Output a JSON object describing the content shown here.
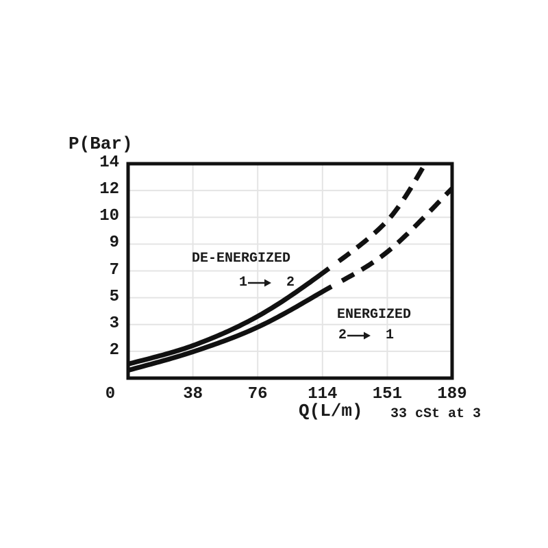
{
  "page": {
    "background": "#ffffff"
  },
  "chart_data": {
    "type": "line",
    "title": "",
    "x_axis": {
      "label": "Q(L/m)",
      "note": "33 cSt at 3",
      "ticks": [
        "0",
        "38",
        "76",
        "114",
        "151",
        "189"
      ],
      "range_lmin": [
        0,
        189
      ],
      "tick_values": [
        0,
        38,
        76,
        114,
        151,
        189
      ]
    },
    "y_axis": {
      "label": "P(Bar)",
      "tick_labels_top_to_bottom": [
        "14",
        "12",
        "10",
        "9",
        "7",
        "5",
        "3",
        "2"
      ],
      "evenly_spaced_ticks": true,
      "bottom_edge_value_bar": 0,
      "top_edge_value_bar": 14,
      "intervals_top_to_bottom": 8
    },
    "grid": true,
    "legend_position": "none",
    "series": [
      {
        "name": "DE-ENERGIZED",
        "flow_path": "1 to 2",
        "points_q_lmin_p_bar": [
          [
            0,
            0.9
          ],
          [
            38,
            2.1
          ],
          [
            76,
            4.0
          ],
          [
            114,
            6.8
          ],
          [
            151,
            10.1
          ],
          [
            174,
            13.9
          ]
        ],
        "solid_until_lmin": 118,
        "style_after": "dashed"
      },
      {
        "name": "ENERGIZED",
        "flow_path": "2 to 1",
        "points_q_lmin_p_bar": [
          [
            0,
            0.5
          ],
          [
            38,
            1.7
          ],
          [
            76,
            3.3
          ],
          [
            114,
            5.6
          ],
          [
            151,
            8.1
          ],
          [
            189,
            12.2
          ]
        ],
        "solid_until_lmin": 120,
        "style_after": "dashed"
      }
    ],
    "colors": {
      "curve": "#111111",
      "frame": "#111111",
      "grid": "#e4e4e4",
      "text": "#1a1a1a",
      "background": "#ffffff"
    }
  },
  "annotations": {
    "de_energized": {
      "label": "DE-ENERGIZED",
      "from": "1",
      "to": "2"
    },
    "energized": {
      "label": "ENERGIZED",
      "from": "2",
      "to": "1"
    }
  }
}
